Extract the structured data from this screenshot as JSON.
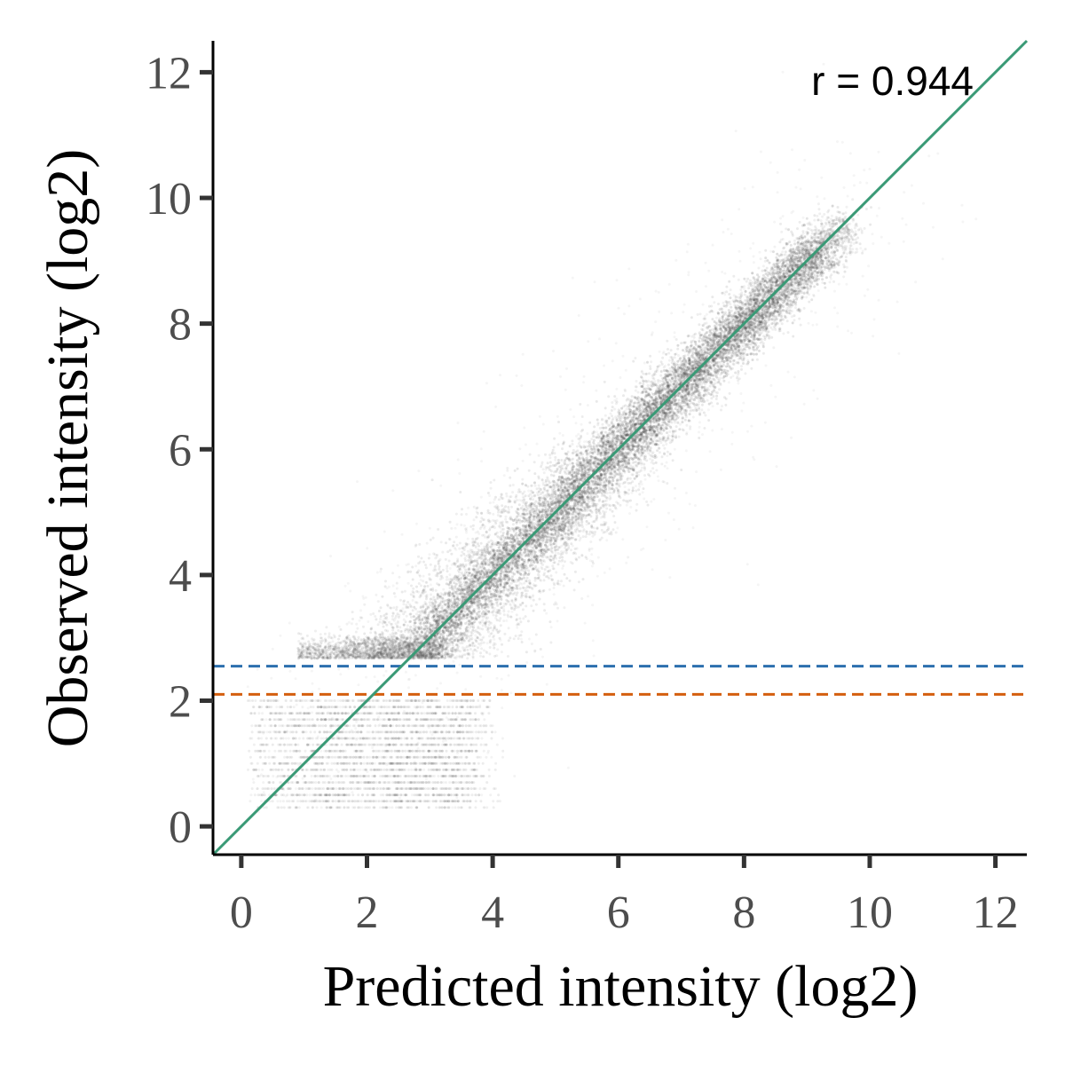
{
  "chart_data": {
    "type": "scatter",
    "title": "",
    "xlabel": "Predicted intensity (log2)",
    "ylabel": "Observed intensity  (log2)",
    "xlim": [
      -0.45,
      12.5
    ],
    "ylim": [
      -0.45,
      12.5
    ],
    "x_ticks": [
      "0",
      "2",
      "4",
      "6",
      "8",
      "10",
      "12"
    ],
    "y_ticks": [
      "0",
      "2",
      "4",
      "6",
      "8",
      "10",
      "12"
    ],
    "grid": false,
    "legend": "none",
    "annotation": "r = 0.944",
    "point_color": "#333333",
    "identity_line": {
      "slope": 1,
      "intercept": 0,
      "color": "#3a9a76"
    },
    "thresholds": [
      {
        "y": 2.55,
        "color": "#2c6fae",
        "style": "dashed"
      },
      {
        "y": 2.1,
        "color": "#d45f0e",
        "style": "dashed"
      }
    ],
    "density_summary": [
      {
        "x": 0.5,
        "y_center": 0.9,
        "spread": 0.5
      },
      {
        "x": 2.0,
        "y_center": 1.7,
        "spread": 0.4
      },
      {
        "x": 3.0,
        "y_center": 2.9,
        "spread": 0.3
      },
      {
        "x": 4.0,
        "y_center": 4.1,
        "spread": 0.35
      },
      {
        "x": 6.0,
        "y_center": 6.0,
        "spread": 0.35
      },
      {
        "x": 8.0,
        "y_center": 7.9,
        "spread": 0.3
      },
      {
        "x": 9.5,
        "y_center": 9.4,
        "spread": 0.25
      }
    ]
  }
}
